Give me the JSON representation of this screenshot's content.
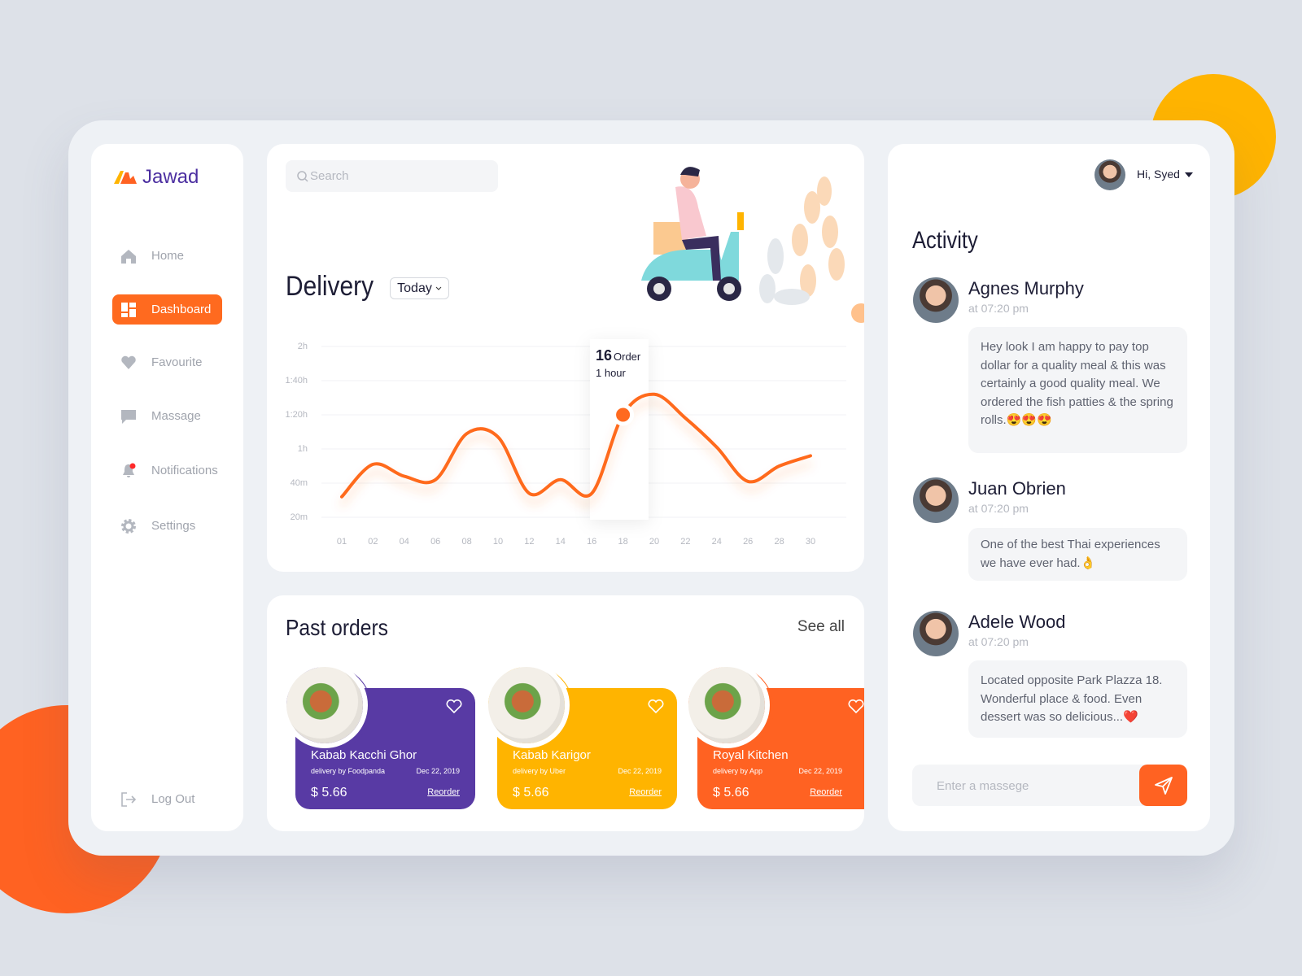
{
  "sidebar": {
    "brand": "Jawad",
    "nav": [
      {
        "label": "Home"
      },
      {
        "label": "Dashboard"
      },
      {
        "label": "Favourite"
      },
      {
        "label": "Massage"
      },
      {
        "label": "Notifications"
      },
      {
        "label": "Settings"
      }
    ],
    "logout": "Log Out"
  },
  "search": {
    "placeholder": "Search"
  },
  "delivery": {
    "title": "Delivery",
    "filter": "Today"
  },
  "chart_data": {
    "type": "line",
    "categories": [
      "01",
      "02",
      "04",
      "06",
      "08",
      "10",
      "12",
      "14",
      "16",
      "18",
      "20",
      "22",
      "24",
      "26",
      "28",
      "30"
    ],
    "values": [
      32,
      51,
      44,
      42,
      69,
      67,
      34,
      42,
      34,
      80,
      92,
      78,
      61,
      41,
      50,
      56
    ],
    "color": "#ff6a1f",
    "ylim": [
      20,
      120
    ],
    "yticks": [
      {
        "value": 20,
        "label": "20m"
      },
      {
        "value": 40,
        "label": "40m"
      },
      {
        "value": 60,
        "label": "1h"
      },
      {
        "value": 80,
        "label": "1:20h"
      },
      {
        "value": 100,
        "label": "1:40h"
      },
      {
        "value": 120,
        "label": "2h"
      }
    ],
    "grid": true,
    "tooltip": {
      "count": 16,
      "unit": "Order",
      "duration": "1 hour"
    }
  },
  "past_orders": {
    "title": "Past orders",
    "see_all": "See all",
    "orders": [
      {
        "name": "Kabab Kacchi Ghor",
        "by": "delivery by Foodpanda",
        "date": "Dec 22, 2019",
        "price": "$ 5.66",
        "action": "Reorder"
      },
      {
        "name": "Kabab Karigor",
        "by": "delivery by Uber",
        "date": "Dec 22, 2019",
        "price": "$ 5.66",
        "action": "Reorder"
      },
      {
        "name": "Royal Kitchen",
        "by": "delivery by App",
        "date": "Dec 22, 2019",
        "price": "$ 5.66",
        "action": "Reorder"
      }
    ]
  },
  "user": {
    "greeting": "Hi, Syed"
  },
  "activity": {
    "title": "Activity",
    "items": [
      {
        "name": "Agnes Murphy",
        "time": "at 07:20 pm",
        "message": "Hey look I am happy to pay top dollar for a quality meal & this was certainly a good quality meal. We ordered the fish patties & the spring rolls.😍😍😍"
      },
      {
        "name": "Juan Obrien",
        "time": "at 07:20 pm",
        "message": "One of the best Thai experiences we have ever had.👌"
      },
      {
        "name": "Adele Wood",
        "time": "at 07:20 pm",
        "message": "Located opposite Park Plazza 18. Wonderful place & food. Even dessert was so delicious...❤️"
      }
    ]
  },
  "composer": {
    "placeholder": "Enter a massege"
  }
}
